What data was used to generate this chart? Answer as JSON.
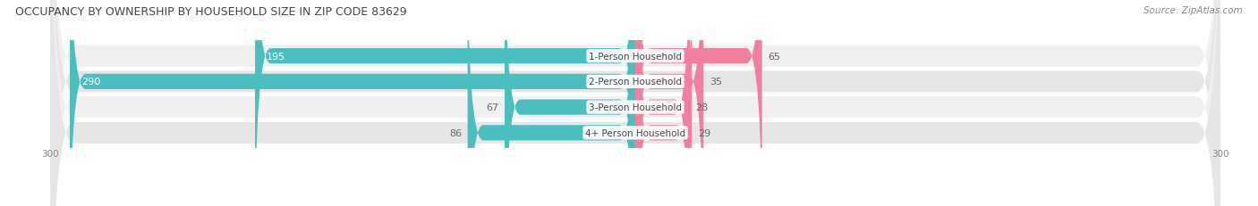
{
  "title": "OCCUPANCY BY OWNERSHIP BY HOUSEHOLD SIZE IN ZIP CODE 83629",
  "source": "Source: ZipAtlas.com",
  "categories": [
    "1-Person Household",
    "2-Person Household",
    "3-Person Household",
    "4+ Person Household"
  ],
  "owner_values": [
    195,
    290,
    67,
    86
  ],
  "renter_values": [
    65,
    35,
    28,
    29
  ],
  "owner_color": "#4bbfbf",
  "renter_color": "#f07fa0",
  "row_bg_even": "#f0f0f0",
  "row_bg_odd": "#e6e6e6",
  "axis_max": 300,
  "title_color": "#444444",
  "source_color": "#888888",
  "label_color_dark": "#666666",
  "label_color_white": "#ffffff",
  "xtick_label": "300"
}
